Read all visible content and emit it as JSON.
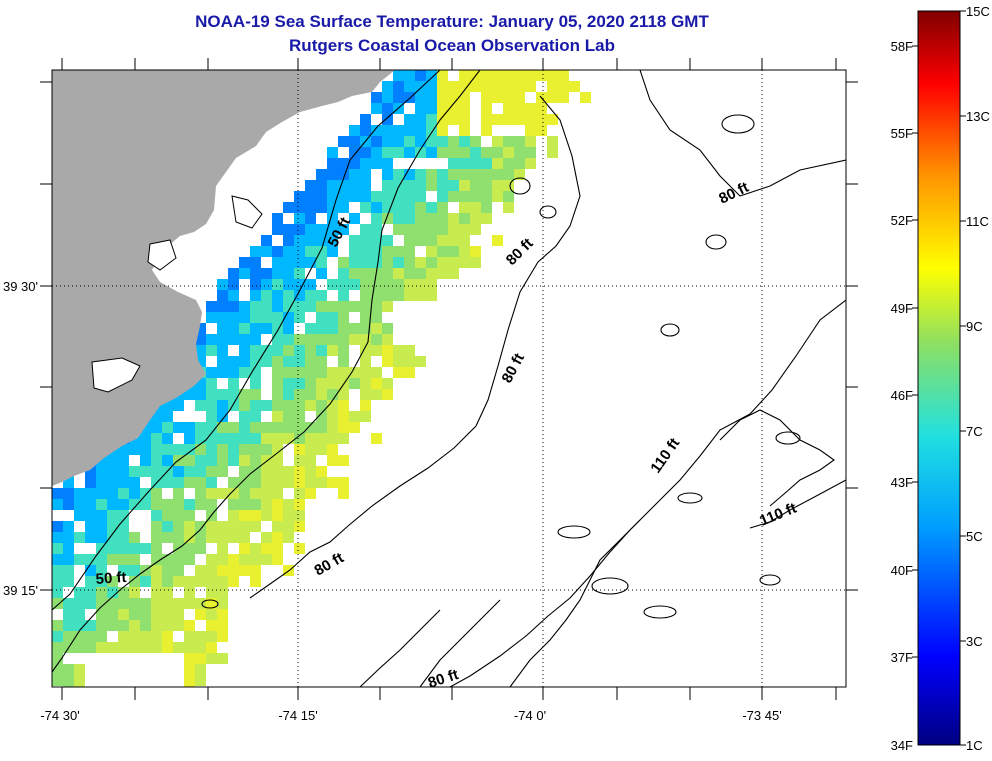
{
  "title": "NOAA-19 Sea Surface Temperature:  January 05, 2020 2118 GMT",
  "subtitle": "Rutgers Coastal Ocean Observation Lab",
  "axes": {
    "x_ticks": [
      "-74 30'",
      "-74 15'",
      "-74 0'",
      "-73 45'"
    ],
    "y_ticks": [
      "39 30'",
      "39 15'"
    ]
  },
  "contour_labels": [
    "50 ft",
    "50 ft",
    "80 ft",
    "80 ft",
    "80 ft",
    "80 ft",
    "80 ft",
    "110 ft",
    "110 ft"
  ],
  "colorbar": {
    "fahrenheit_labels": [
      "58F",
      "55F",
      "52F",
      "49F",
      "46F",
      "43F",
      "40F",
      "37F",
      "34F"
    ],
    "celsius_labels": [
      "15C",
      "13C",
      "11C",
      "9C",
      "7C",
      "5C",
      "3C",
      "1C"
    ]
  },
  "colors": {
    "land": "#a9a9a9",
    "title": "#1a1aa8"
  }
}
